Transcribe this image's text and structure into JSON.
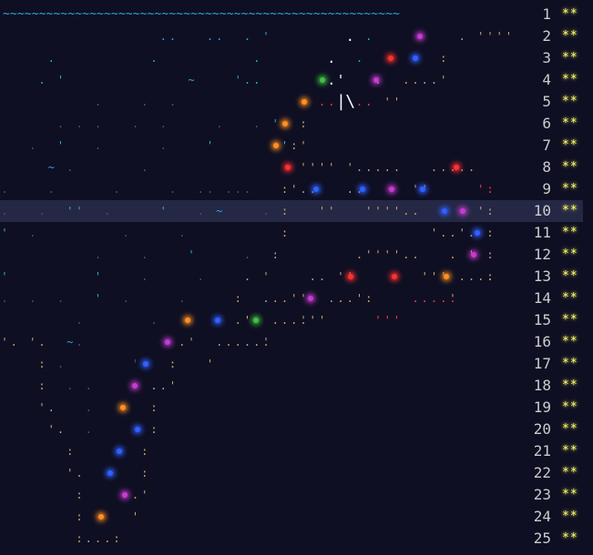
{
  "calendar": {
    "wave_line": "~~~~~~~~~~~~~~~~~~~~~~~~~~~~~~~~~~~~~~~~~~~~~~~~~~~~~~~",
    "days": [
      {
        "day": "1",
        "stars": "**"
      },
      {
        "day": "2",
        "stars": "**"
      },
      {
        "day": "3",
        "stars": "**"
      },
      {
        "day": "4",
        "stars": "**"
      },
      {
        "day": "5",
        "stars": "**"
      },
      {
        "day": "6",
        "stars": "**"
      },
      {
        "day": "7",
        "stars": "**"
      },
      {
        "day": "8",
        "stars": "**"
      },
      {
        "day": "9",
        "stars": "**"
      },
      {
        "day": "10",
        "stars": "**"
      },
      {
        "day": "11",
        "stars": "**"
      },
      {
        "day": "12",
        "stars": "**"
      },
      {
        "day": "13",
        "stars": "**"
      },
      {
        "day": "14",
        "stars": "**"
      },
      {
        "day": "15",
        "stars": "**"
      },
      {
        "day": "16",
        "stars": "**"
      },
      {
        "day": "17",
        "stars": "**"
      },
      {
        "day": "18",
        "stars": "**"
      },
      {
        "day": "19",
        "stars": "**"
      },
      {
        "day": "20",
        "stars": "**"
      },
      {
        "day": "21",
        "stars": "**"
      },
      {
        "day": "22",
        "stars": "**"
      },
      {
        "day": "23",
        "stars": "**"
      },
      {
        "day": "24",
        "stars": "**"
      },
      {
        "day": "25",
        "stars": "**"
      }
    ],
    "highlighted_day": "10",
    "colors": {
      "background": "#0f0f23",
      "star": "#ffff66",
      "wave": "#2aa9e0",
      "path": "#c8a46e",
      "highlight": "#7882be"
    }
  }
}
